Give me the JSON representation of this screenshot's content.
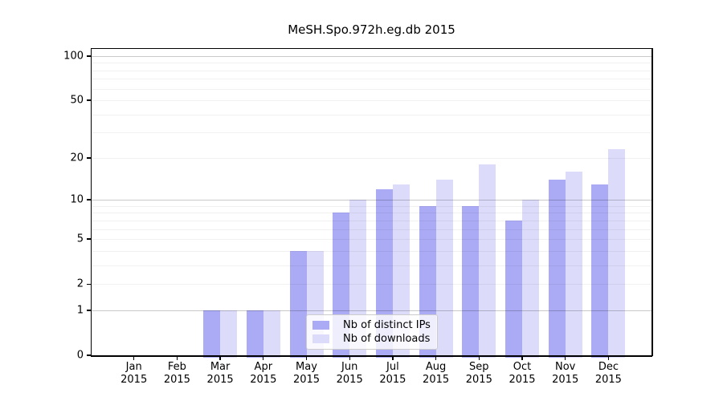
{
  "title": "MeSH.Spo.972h.eg.db 2015",
  "chart_data": {
    "type": "bar",
    "title": "MeSH.Spo.972h.eg.db 2015",
    "categories": [
      "Jan",
      "Feb",
      "Mar",
      "Apr",
      "May",
      "Jun",
      "Jul",
      "Aug",
      "Sep",
      "Oct",
      "Nov",
      "Dec"
    ],
    "year": "2015",
    "series": [
      {
        "name": "Nb of distinct IPs",
        "color": "#aaaaf5",
        "values": [
          0,
          0,
          1,
          1,
          4,
          8,
          12,
          9,
          9,
          7,
          14,
          13
        ]
      },
      {
        "name": "Nb of downloads",
        "color": "#dcdcfa",
        "values": [
          0,
          0,
          1,
          1,
          4,
          10,
          13,
          14,
          18,
          10,
          16,
          23
        ]
      }
    ],
    "xlabel": "",
    "ylabel": "",
    "yscale": "log1p",
    "yticks": [
      0,
      1,
      2,
      5,
      10,
      20,
      50,
      100
    ],
    "major_gridlines": [
      1,
      10,
      100
    ],
    "minor_gridlines": [
      2,
      3,
      4,
      5,
      6,
      7,
      8,
      9,
      20,
      30,
      40,
      50,
      60,
      70,
      80,
      90
    ],
    "ylim": [
      0,
      112
    ],
    "grid": "on",
    "legend_position": "lower center"
  }
}
